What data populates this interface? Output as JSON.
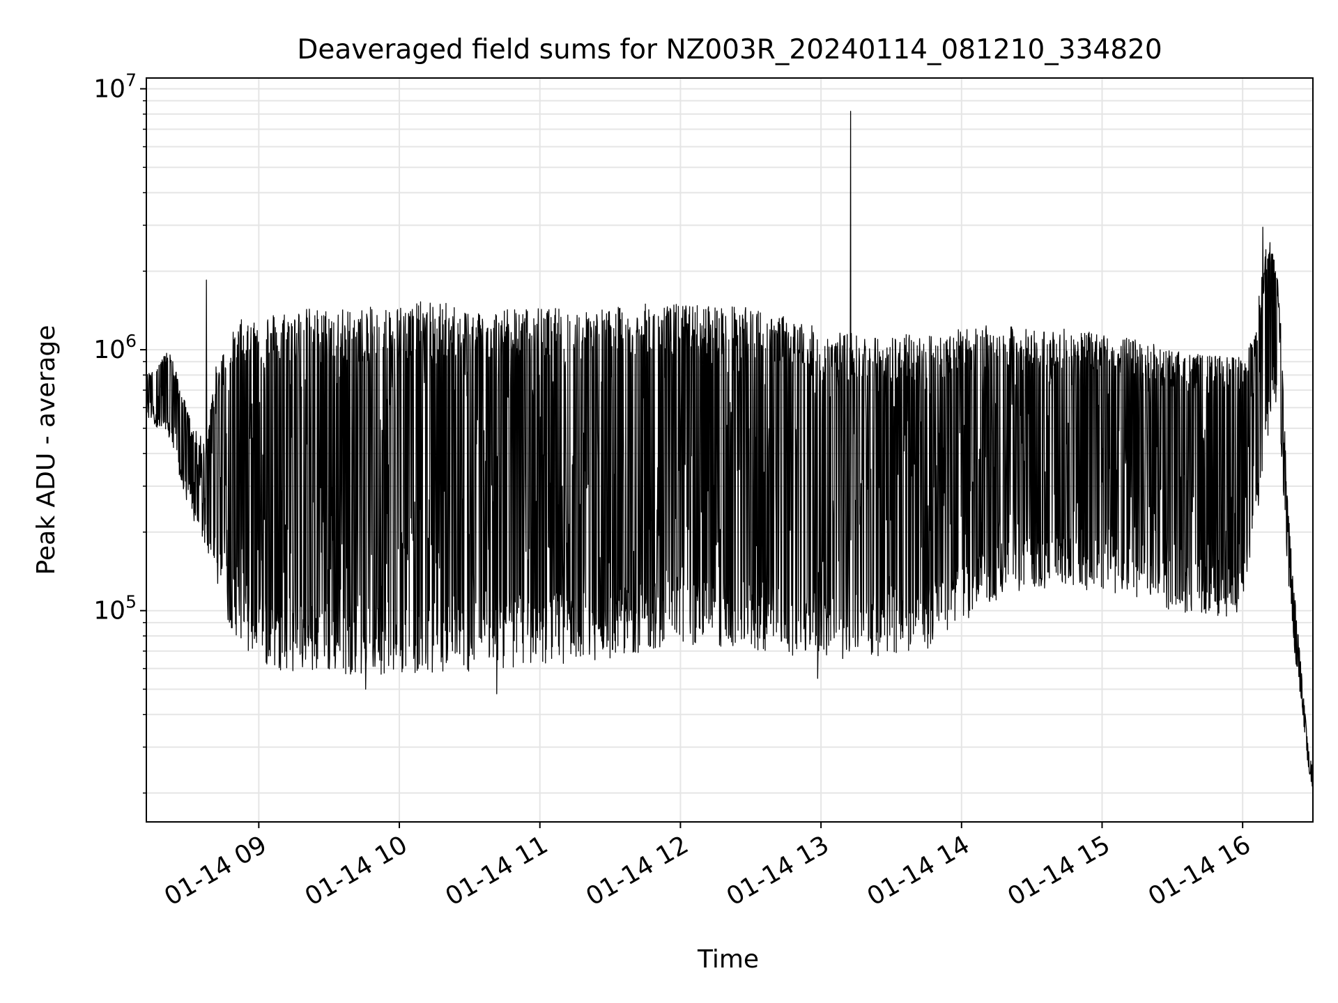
{
  "chart_data": {
    "type": "line",
    "title": "Deaveraged field sums for NZ003R_20240114_081210_334820",
    "xlabel": "Time",
    "ylabel": "Peak ADU - average",
    "y_scale": "log",
    "ylim": [
      15500,
      11000000
    ],
    "xlim": [
      "2024-01-14 08:12",
      "2024-01-14 16:30"
    ],
    "grid": true,
    "legend": "none",
    "colors": {
      "line": "#000000",
      "grid": "#e5e5e5",
      "axes": "#000000",
      "background": "#ffffff"
    },
    "x_ticks": [
      {
        "value": "2024-01-14 09:00",
        "label": "01-14 09"
      },
      {
        "value": "2024-01-14 10:00",
        "label": "01-14 10"
      },
      {
        "value": "2024-01-14 11:00",
        "label": "01-14 11"
      },
      {
        "value": "2024-01-14 12:00",
        "label": "01-14 12"
      },
      {
        "value": "2024-01-14 13:00",
        "label": "01-14 13"
      },
      {
        "value": "2024-01-14 14:00",
        "label": "01-14 14"
      },
      {
        "value": "2024-01-14 15:00",
        "label": "01-14 15"
      },
      {
        "value": "2024-01-14 16:00",
        "label": "01-14 16"
      }
    ],
    "y_ticks": [
      {
        "value": 100000,
        "base": "10",
        "exp": "5"
      },
      {
        "value": 1000000,
        "base": "10",
        "exp": "6"
      },
      {
        "value": 10000000,
        "base": "10",
        "exp": "7"
      }
    ],
    "series": [
      {
        "description": "Black line oscillating rapidly between an envelope floor and ceiling (values in ADU)",
        "envelope": {
          "x": [
            "2024-01-14 08:12",
            "2024-01-14 08:17",
            "2024-01-14 08:22",
            "2024-01-14 08:27",
            "2024-01-14 08:32",
            "2024-01-14 08:37",
            "2024-01-14 08:42",
            "2024-01-14 08:47",
            "2024-01-14 08:52",
            "2024-01-14 08:57",
            "2024-01-14 09:05",
            "2024-01-14 09:15",
            "2024-01-14 09:30",
            "2024-01-14 09:45",
            "2024-01-14 10:00",
            "2024-01-14 10:15",
            "2024-01-14 10:30",
            "2024-01-14 10:45",
            "2024-01-14 11:00",
            "2024-01-14 11:15",
            "2024-01-14 11:30",
            "2024-01-14 11:45",
            "2024-01-14 12:00",
            "2024-01-14 12:15",
            "2024-01-14 12:30",
            "2024-01-14 12:45",
            "2024-01-14 13:00",
            "2024-01-14 13:15",
            "2024-01-14 13:30",
            "2024-01-14 13:45",
            "2024-01-14 14:00",
            "2024-01-14 14:15",
            "2024-01-14 14:30",
            "2024-01-14 14:45",
            "2024-01-14 15:00",
            "2024-01-14 15:15",
            "2024-01-14 15:30",
            "2024-01-14 15:45",
            "2024-01-14 16:00",
            "2024-01-14 16:05",
            "2024-01-14 16:10",
            "2024-01-14 16:13",
            "2024-01-14 16:16",
            "2024-01-14 16:19",
            "2024-01-14 16:22",
            "2024-01-14 16:25",
            "2024-01-14 16:28",
            "2024-01-14 16:30"
          ],
          "low": [
            550000,
            500000,
            450000,
            300000,
            220000,
            180000,
            130000,
            90000,
            75000,
            65000,
            60000,
            58000,
            57000,
            57000,
            57000,
            58000,
            58000,
            60000,
            62000,
            63000,
            65000,
            70000,
            75000,
            72000,
            70000,
            68000,
            65000,
            65000,
            68000,
            70000,
            90000,
            110000,
            120000,
            120000,
            120000,
            110000,
            100000,
            95000,
            95000,
            180000,
            400000,
            700000,
            500000,
            150000,
            70000,
            45000,
            25000,
            20000
          ],
          "high": [
            800000,
            900000,
            1000000,
            700000,
            500000,
            450000,
            900000,
            1100000,
            1300000,
            1400000,
            1400000,
            1450000,
            1450000,
            1450000,
            1500000,
            1550000,
            1450000,
            1450000,
            1450000,
            1450000,
            1450000,
            1500000,
            1500000,
            1500000,
            1450000,
            1350000,
            1200000,
            1150000,
            1150000,
            1150000,
            1200000,
            1250000,
            1200000,
            1200000,
            1150000,
            1100000,
            1000000,
            950000,
            950000,
            1200000,
            2500000,
            2700000,
            1500000,
            300000,
            120000,
            60000,
            30000,
            25000
          ]
        },
        "spikes": [
          {
            "x": "2024-01-14 08:38",
            "y": 1850000
          },
          {
            "x": "2024-01-14 13:13",
            "y": 8200000
          },
          {
            "x": "2024-01-14 16:09",
            "y": 2950000
          },
          {
            "x": "2024-01-14 10:42",
            "y": 48000
          },
          {
            "x": "2024-01-14 09:46",
            "y": 50000
          },
          {
            "x": "2024-01-14 12:59",
            "y": 55000
          }
        ]
      }
    ]
  }
}
